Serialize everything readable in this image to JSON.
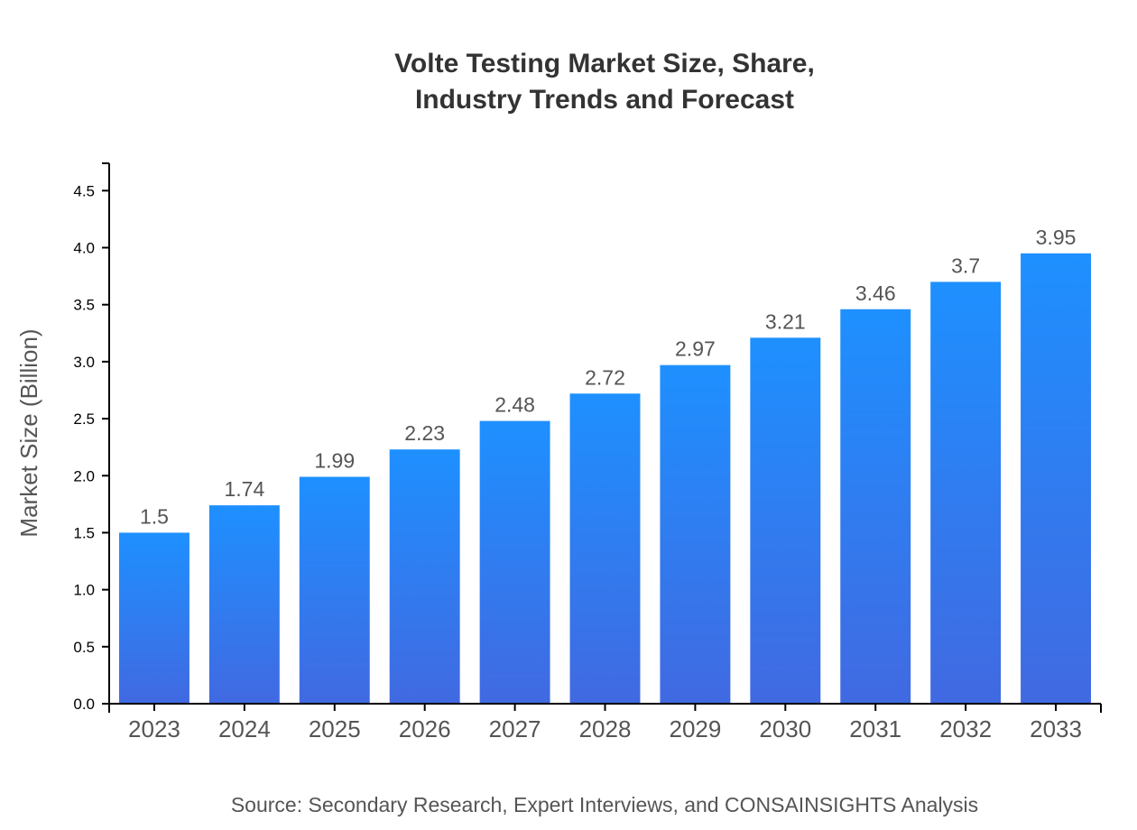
{
  "chart_data": {
    "type": "bar",
    "title_lines": [
      "Volte Testing Market Size, Share,",
      "Industry Trends and Forecast"
    ],
    "xlabel": "",
    "ylabel": "Market Size (Billion)",
    "categories": [
      "2023",
      "2024",
      "2025",
      "2026",
      "2027",
      "2028",
      "2029",
      "2030",
      "2031",
      "2032",
      "2033"
    ],
    "values": [
      1.5,
      1.74,
      1.99,
      2.23,
      2.48,
      2.72,
      2.97,
      3.21,
      3.46,
      3.7,
      3.95
    ],
    "ylim": [
      0,
      4.74
    ],
    "yticks": [
      "0.0",
      "0.5",
      "1.0",
      "1.5",
      "2.0",
      "2.5",
      "3.0",
      "3.5",
      "4.0",
      "4.5"
    ],
    "grid": false,
    "legend": "none",
    "colors": {
      "bar_top": "#1e90ff",
      "bar_bottom": "#4169e1"
    },
    "source": "Source: Secondary Research, Expert Interviews, and CONSAINSIGHTS Analysis"
  }
}
